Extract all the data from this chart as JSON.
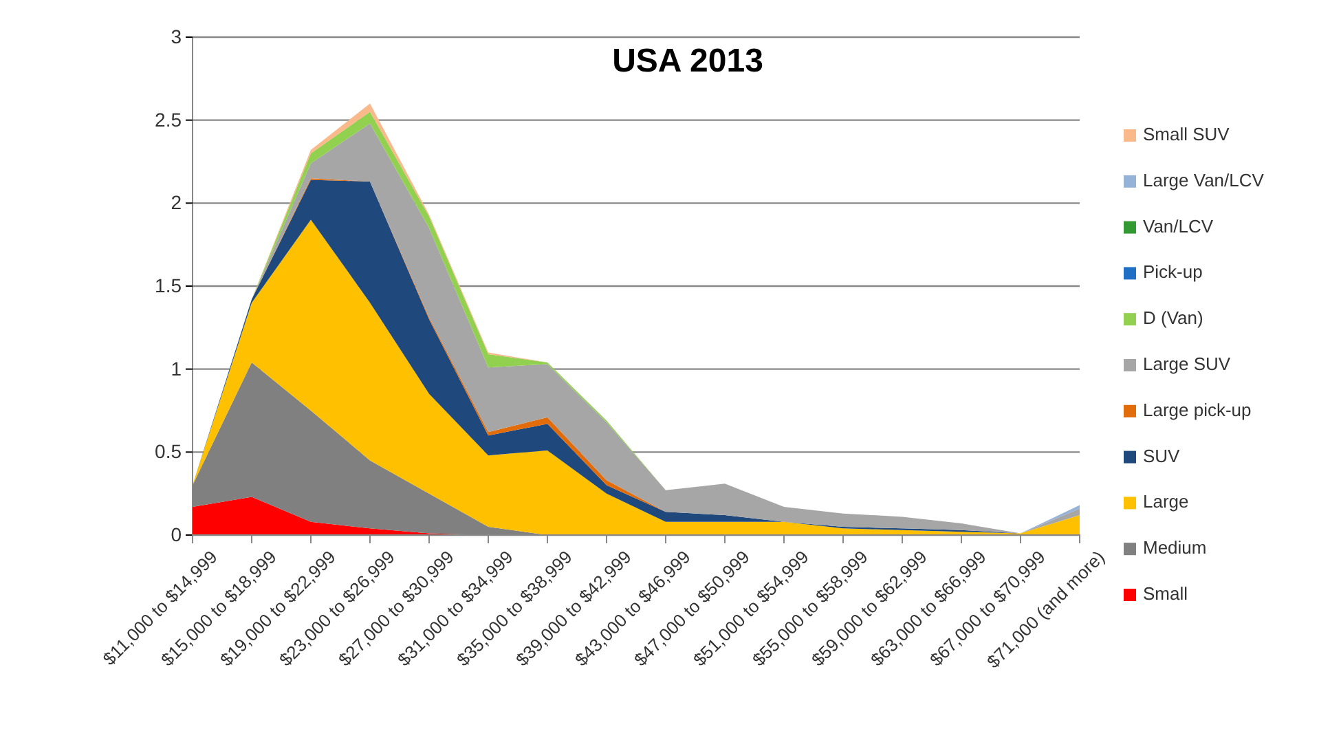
{
  "chart_data": {
    "type": "area",
    "title": "USA 2013",
    "stacked": true,
    "legend": "right",
    "grid": "y",
    "categories": [
      "$11,000 to $14,999",
      "$15,000 to $18,999",
      "$19,000 to $22,999",
      "$23,000 to $26,999",
      "$27,000 to $30,999",
      "$31,000 to $34,999",
      "$35,000 to $38,999",
      "$39,000 to $42,999",
      "$43,000 to $46,999",
      "$47,000 to $50,999",
      "$51,000 to $54,999",
      "$55,000 to $58,999",
      "$59,000 to $62,999",
      "$63,000 to $66,999",
      "$67,000 to $70,999",
      "$71,000 (and more)"
    ],
    "ylim": [
      0,
      3
    ],
    "yticks": [
      0,
      0.5,
      1,
      1.5,
      2,
      2.5,
      3
    ],
    "series": [
      {
        "name": "Small",
        "color": "#ff0000",
        "values": [
          0.17,
          0.23,
          0.08,
          0.04,
          0.01,
          0,
          0,
          0,
          0,
          0,
          0,
          0,
          0,
          0,
          0,
          0
        ]
      },
      {
        "name": "Medium",
        "color": "#808080",
        "values": [
          0.13,
          0.81,
          0.67,
          0.41,
          0.24,
          0.05,
          0,
          0,
          0,
          0,
          0,
          0,
          0,
          0,
          0,
          0
        ]
      },
      {
        "name": "Large",
        "color": "#ffc000",
        "values": [
          0,
          0.36,
          1.15,
          0.95,
          0.6,
          0.43,
          0.51,
          0.25,
          0.08,
          0.08,
          0.08,
          0.04,
          0.03,
          0.02,
          0.01,
          0.12
        ]
      },
      {
        "name": "SUV",
        "color": "#1f497d",
        "values": [
          0,
          0.02,
          0.24,
          0.73,
          0.45,
          0.12,
          0.16,
          0.05,
          0.06,
          0.04,
          0,
          0.01,
          0.01,
          0.01,
          0,
          0
        ]
      },
      {
        "name": "Large pick-up",
        "color": "#e26b0a",
        "values": [
          0,
          0,
          0.01,
          0,
          0.01,
          0.02,
          0.04,
          0.03,
          0,
          0,
          0,
          0,
          0,
          0,
          0,
          0
        ]
      },
      {
        "name": "Large SUV",
        "color": "#a6a6a6",
        "values": [
          0,
          0,
          0.09,
          0.35,
          0.54,
          0.39,
          0.32,
          0.35,
          0.13,
          0.19,
          0.09,
          0.08,
          0.07,
          0.04,
          0,
          0.04
        ]
      },
      {
        "name": "D (Van)",
        "color": "#92d050",
        "values": [
          0,
          0,
          0.06,
          0.07,
          0.07,
          0.08,
          0.01,
          0.01,
          0,
          0,
          0,
          0,
          0,
          0,
          0,
          0
        ]
      },
      {
        "name": "Pick-up",
        "color": "#1f6fc5",
        "values": [
          null,
          null,
          null,
          null,
          null,
          null,
          null,
          null,
          null,
          null,
          null,
          null,
          null,
          null,
          null,
          null
        ]
      },
      {
        "name": "Van/LCV",
        "color": "#339933",
        "values": [
          null,
          null,
          null,
          null,
          null,
          null,
          null,
          null,
          null,
          null,
          null,
          null,
          null,
          null,
          null,
          null
        ]
      },
      {
        "name": "Large Van/LCV",
        "color": "#95b3d7",
        "values": [
          null,
          null,
          null,
          null,
          null,
          null,
          null,
          null,
          null,
          null,
          null,
          null,
          null,
          null,
          0,
          0.02
        ]
      },
      {
        "name": "Small SUV",
        "color": "#f9b98b",
        "values": [
          0,
          0,
          0.02,
          0.05,
          0.01,
          0.01,
          0,
          0,
          0,
          0,
          0,
          0,
          0,
          0,
          0,
          0
        ]
      }
    ]
  }
}
